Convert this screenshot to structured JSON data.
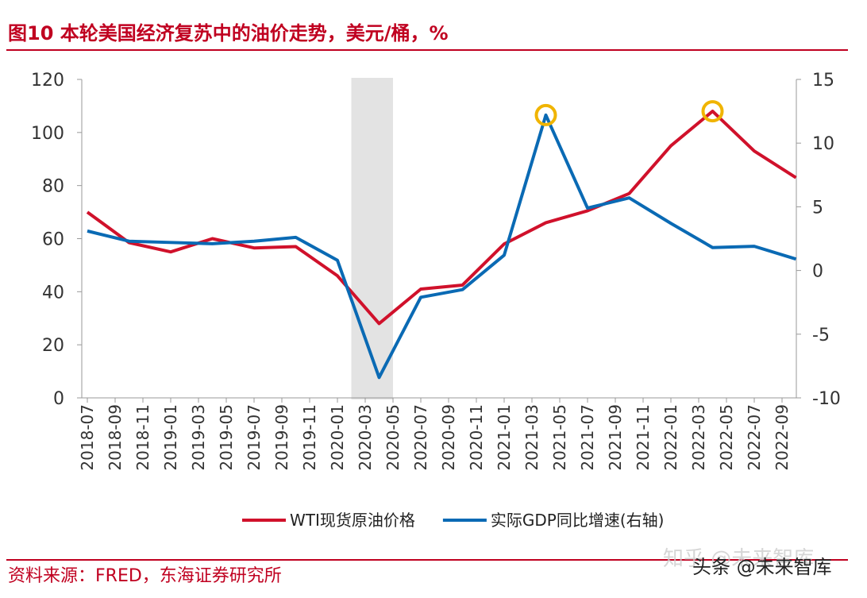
{
  "chart_data": {
    "type": "line",
    "title": "图10  本轮美国经济复苏中的油价走势，美元/桶，%",
    "source": "资料来源：FRED，东海证券研究所",
    "watermark": [
      "知乎 @未来智库",
      "头条 @未来智库"
    ],
    "xticks": [
      "2018-07",
      "2018-09",
      "2018-11",
      "2019-01",
      "2019-03",
      "2019-05",
      "2019-07",
      "2019-09",
      "2019-11",
      "2020-01",
      "2020-03",
      "2020-05",
      "2020-07",
      "2020-09",
      "2020-11",
      "2021-01",
      "2021-03",
      "2021-05",
      "2021-07",
      "2021-09",
      "2021-11",
      "2022-01",
      "2022-03",
      "2022-05",
      "2022-07",
      "2022-09"
    ],
    "x": [
      "2018-07",
      "2018-10",
      "2019-01",
      "2019-04",
      "2019-07",
      "2019-10",
      "2020-01",
      "2020-04",
      "2020-07",
      "2020-10",
      "2021-01",
      "2021-04",
      "2021-07",
      "2021-10",
      "2022-01",
      "2022-04",
      "2022-07",
      "2022-10"
    ],
    "series": [
      {
        "name": "WTI现货原油价格",
        "color": "#d0112b",
        "values": [
          70,
          58.5,
          55,
          60,
          56.5,
          57,
          46,
          28,
          41,
          42.5,
          58,
          66,
          70.5,
          77,
          95,
          108,
          93,
          83
        ]
      },
      {
        "name": "实际GDP同比增速(右轴)",
        "color": "#0a6ab4",
        "axis": "y2",
        "values": [
          3.1,
          2.3,
          2.2,
          2.1,
          2.3,
          2.6,
          0.8,
          -8.4,
          -2.1,
          -1.5,
          1.2,
          12.2,
          4.9,
          5.7,
          3.7,
          1.8,
          1.9,
          0.9
        ]
      }
    ],
    "shaded_range": [
      "2020-02",
      "2020-05"
    ],
    "highlights": [
      {
        "series": 1,
        "x": "2021-04"
      },
      {
        "series": 0,
        "x": "2022-04"
      }
    ],
    "ylim": [
      0,
      120
    ],
    "yticks": [
      0,
      20,
      40,
      60,
      80,
      100,
      120
    ],
    "y2lim": [
      -10,
      15
    ],
    "y2ticks": [
      -10,
      -5,
      0,
      5,
      10,
      15
    ],
    "legend": "bottom"
  }
}
